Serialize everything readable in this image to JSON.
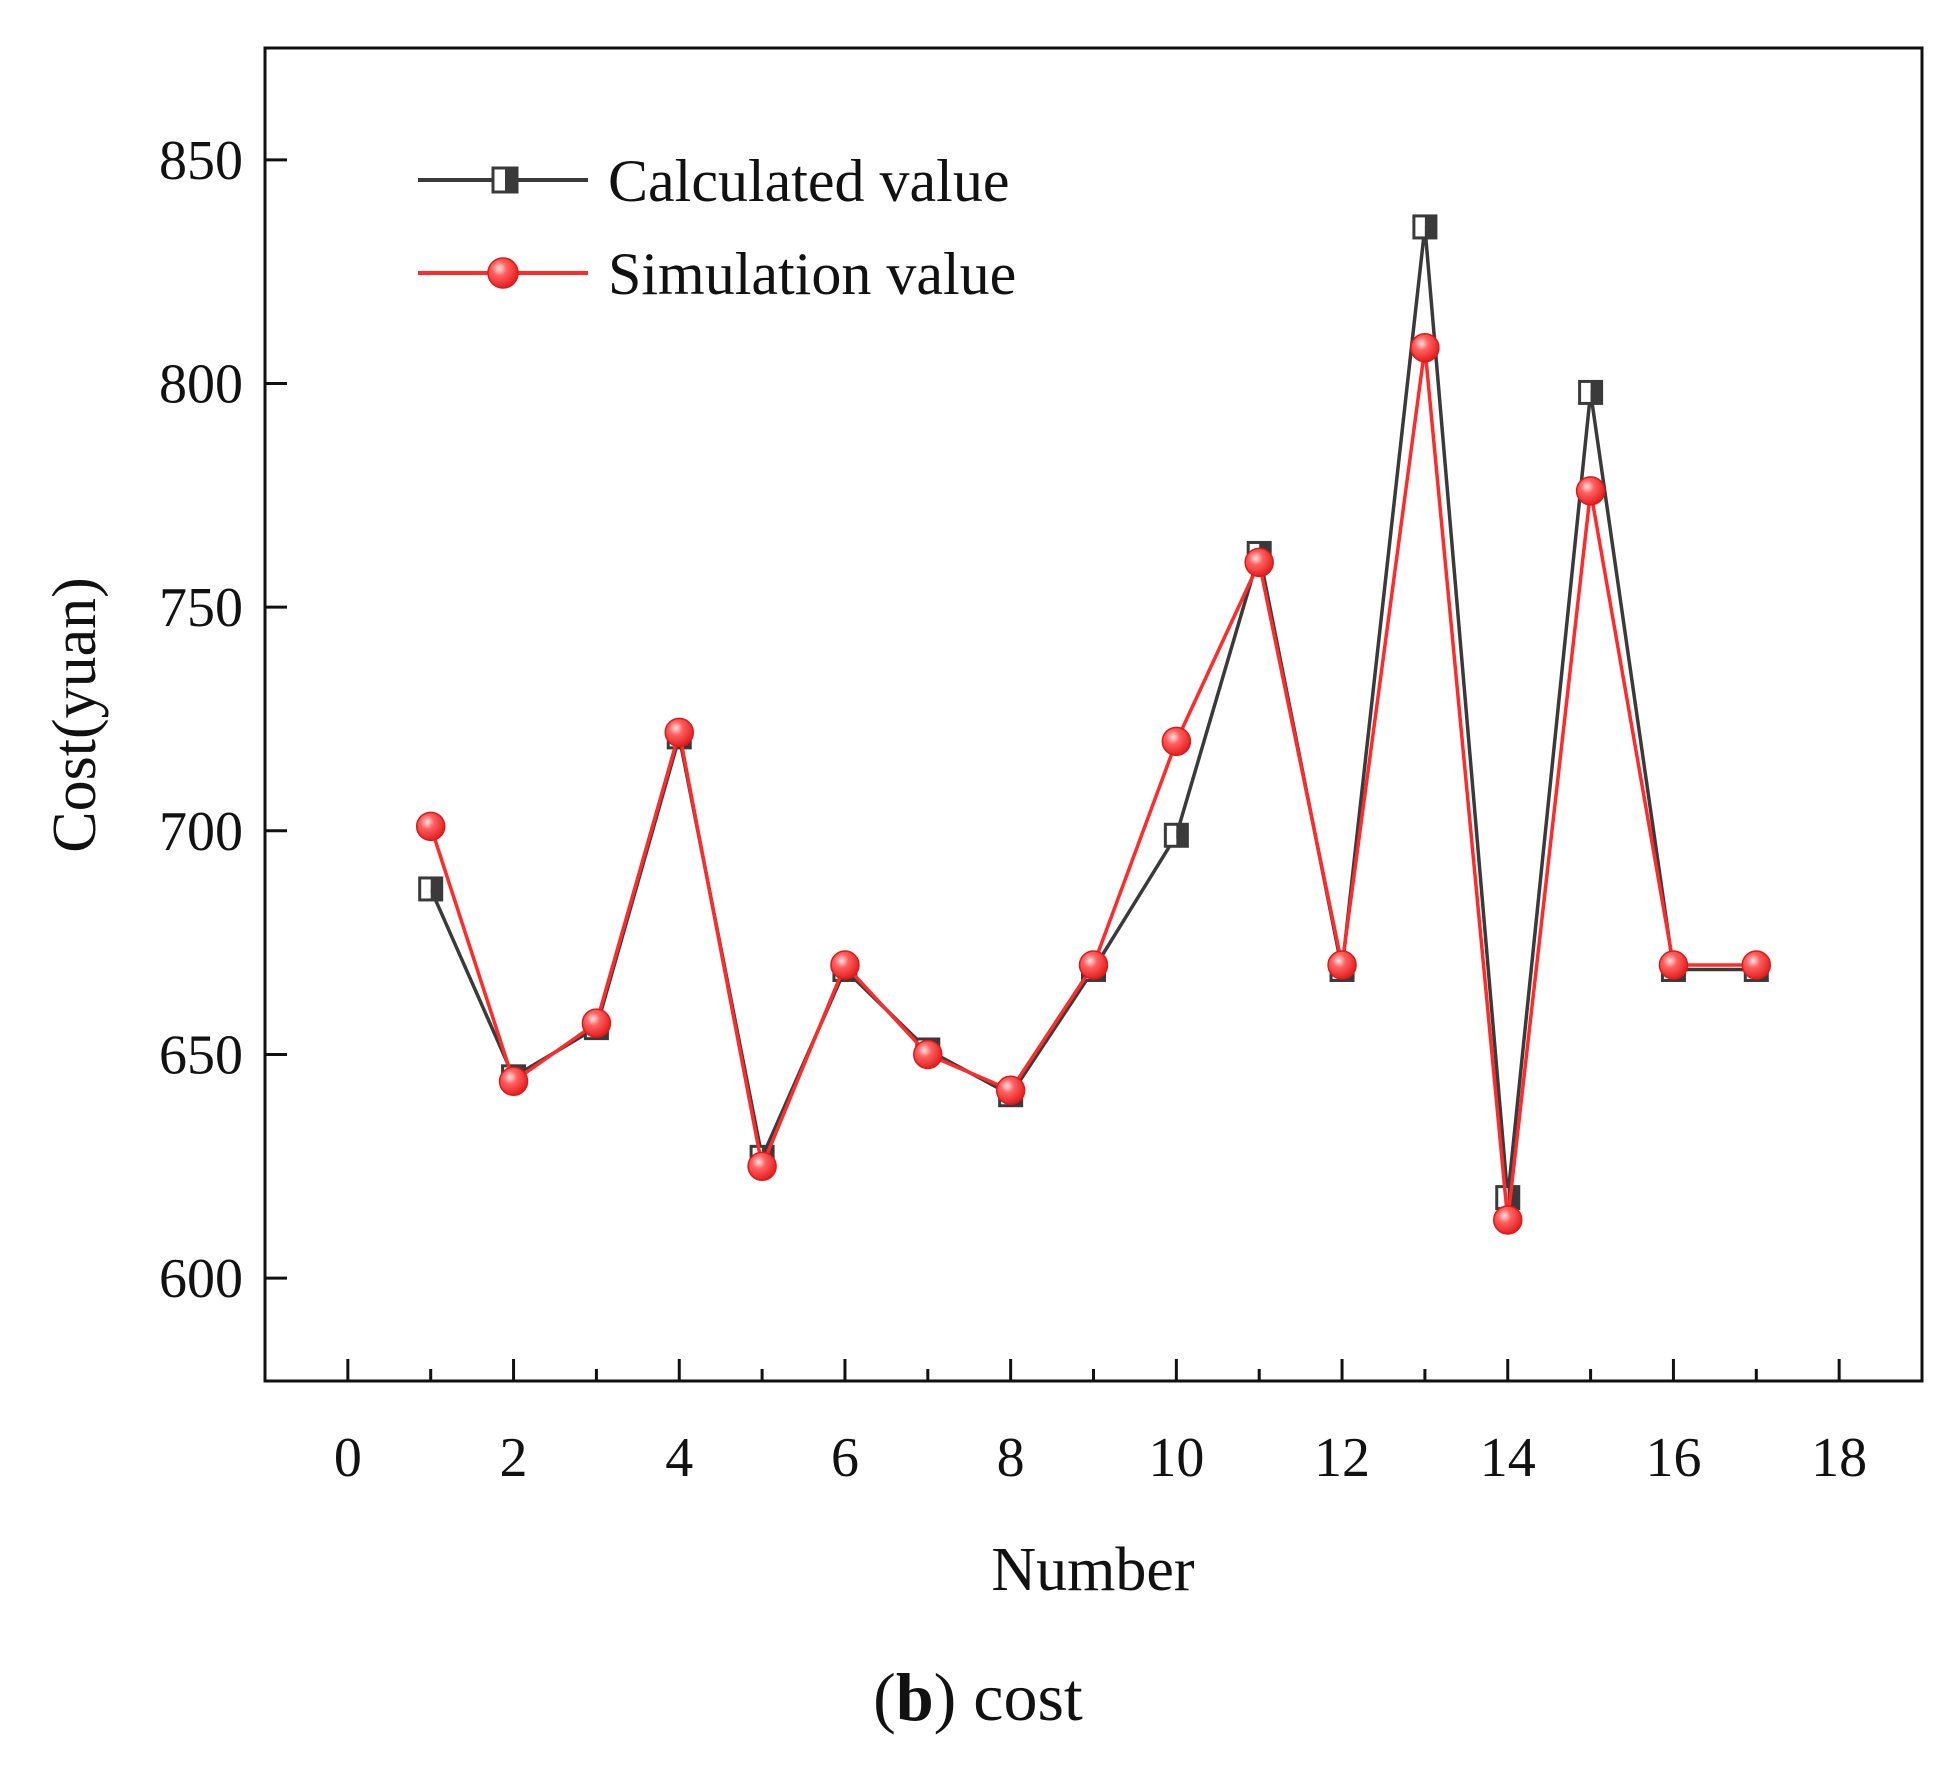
{
  "caption": {
    "open_paren": "(",
    "letter": "b",
    "rest": ") cost"
  },
  "chart_data": {
    "type": "line",
    "title": "",
    "xlabel": "Number",
    "ylabel": "Cost(yuan)",
    "xlim": [
      -1,
      19
    ],
    "ylim": [
      577,
      875
    ],
    "xticks": [
      0,
      2,
      4,
      6,
      8,
      10,
      12,
      14,
      16,
      18
    ],
    "xtick_labels": [
      "0",
      "2",
      "4",
      "6",
      "8",
      "10",
      "12",
      "14",
      "16",
      "18"
    ],
    "xminor_ticks": [
      1,
      3,
      5,
      7,
      9,
      11,
      13,
      15,
      17
    ],
    "yticks": [
      600,
      650,
      700,
      750,
      800,
      850
    ],
    "ytick_labels": [
      "600",
      "650",
      "700",
      "750",
      "800",
      "850"
    ],
    "grid": false,
    "legend_position": "top-left",
    "x": [
      1,
      2,
      3,
      4,
      5,
      6,
      7,
      8,
      9,
      10,
      11,
      12,
      13,
      14,
      15,
      16,
      17
    ],
    "series": [
      {
        "name": "Calculated value",
        "color": "#3a3a3a",
        "marker": "half-filled-square",
        "values": [
          687,
          645,
          656,
          721,
          627,
          669,
          651,
          641,
          669,
          699,
          762,
          669,
          835,
          618,
          798,
          669,
          669
        ]
      },
      {
        "name": "Simulation value",
        "color": "#ff2a2a",
        "marker": "circle",
        "values": [
          701,
          644,
          657,
          722,
          625,
          670,
          650,
          642,
          670,
          720,
          760,
          670,
          808,
          613,
          776,
          670,
          670
        ]
      }
    ]
  }
}
